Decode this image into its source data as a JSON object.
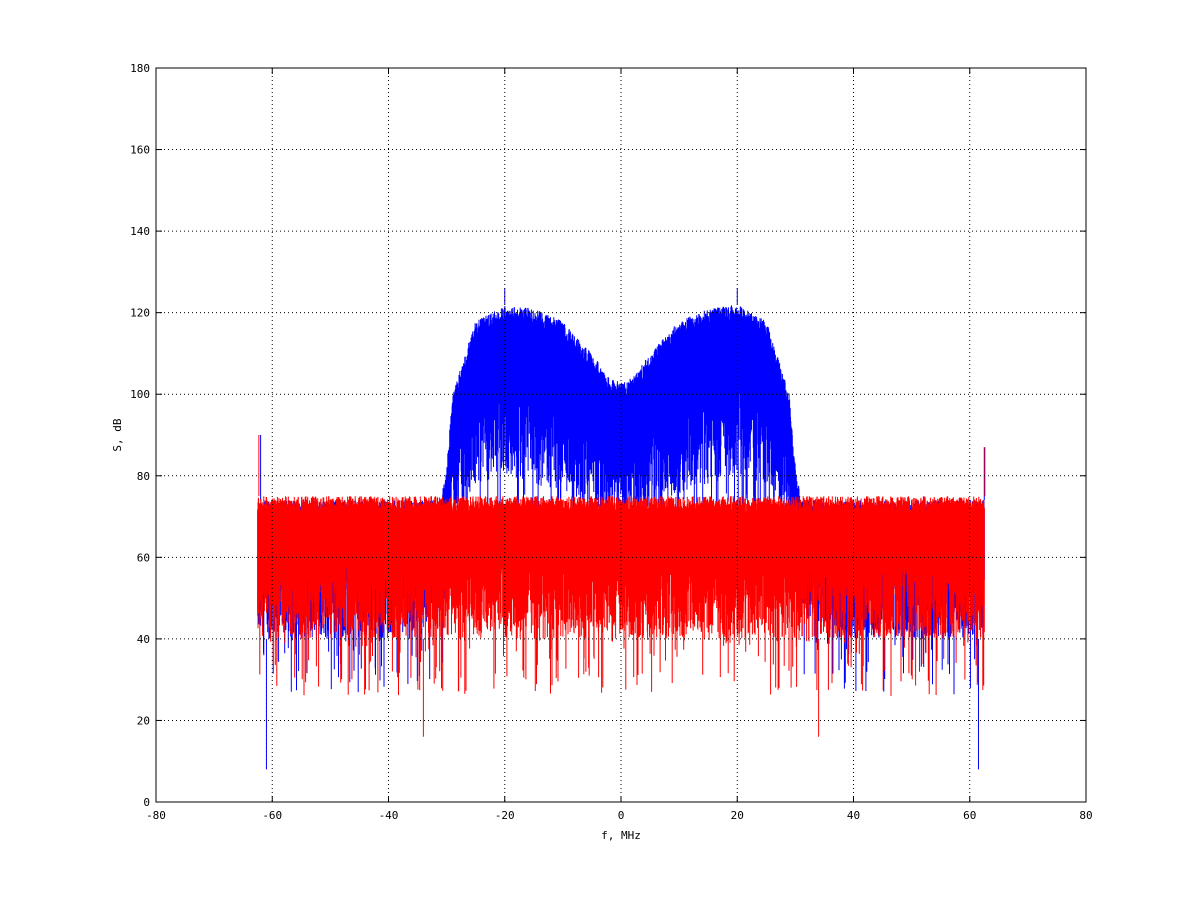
{
  "chart_data": {
    "type": "line",
    "title": "",
    "xlabel": "f, MHz",
    "ylabel": "S, dB",
    "xlim": [
      -80,
      80
    ],
    "ylim": [
      0,
      180
    ],
    "x_ticks": [
      -80,
      -60,
      -40,
      -20,
      0,
      20,
      40,
      60,
      80
    ],
    "y_ticks": [
      0,
      20,
      40,
      60,
      80,
      100,
      120,
      140,
      160,
      180
    ],
    "x_tick_labels": [
      "-80",
      "-60",
      "-40",
      "-20",
      "0",
      "20",
      "40",
      "60",
      "80"
    ],
    "y_tick_labels": [
      "0",
      "20",
      "40",
      "60",
      "80",
      "100",
      "120",
      "140",
      "160",
      "180"
    ],
    "grid": true,
    "x_range_data": [
      -62.5,
      62.5
    ],
    "series": [
      {
        "color": "#0000ff",
        "description_points": {
          "x": [
            -62.5,
            -40,
            -31,
            -30,
            -29,
            -25,
            -20,
            -15,
            -10,
            -5,
            -2,
            0,
            2,
            5,
            10,
            15,
            20,
            25,
            29,
            30,
            31,
            40,
            62.5
          ],
          "upper": [
            74,
            74,
            74,
            82,
            100,
            118,
            122,
            121,
            118,
            110,
            104,
            103,
            104,
            110,
            118,
            121,
            122,
            118,
            100,
            82,
            74,
            74,
            74
          ],
          "lower": [
            40,
            40,
            45,
            50,
            70,
            78,
            80,
            78,
            76,
            72,
            70,
            68,
            70,
            72,
            76,
            78,
            80,
            78,
            70,
            50,
            45,
            40,
            40
          ]
        },
        "spikes": [
          {
            "x": -62,
            "y": 90
          },
          {
            "x": -61,
            "y": 8
          },
          {
            "x": -20,
            "y": 126
          },
          {
            "x": 20,
            "y": 126
          },
          {
            "x": 61.5,
            "y": 8
          },
          {
            "x": 62.5,
            "y": 87
          }
        ]
      },
      {
        "color": "#ff0000",
        "description_points": {
          "x": [
            -62.5,
            62.5
          ],
          "upper": [
            75,
            75
          ],
          "lower": [
            40,
            40
          ]
        },
        "spikes": [
          {
            "x": -62.3,
            "y": 90
          },
          {
            "x": -34,
            "y": 16
          },
          {
            "x": 34,
            "y": 16
          },
          {
            "x": 62.6,
            "y": 87
          }
        ]
      }
    ]
  }
}
